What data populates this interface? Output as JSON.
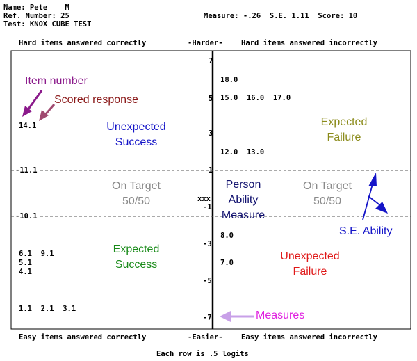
{
  "header": {
    "name": "Name: Pete    M",
    "ref": "Ref. Number: 25",
    "test": "Test: KNOX CUBE TEST",
    "stats": "Measure: -.26  S.E. 1.11  Score: 10"
  },
  "top_row": {
    "left": "Hard items answered correctly",
    "center": "-Harder-",
    "right": "Hard items answered incorrectly"
  },
  "bottom_row": {
    "left": "Easy items answered correctly",
    "center": "-Easier-",
    "right": "Easy items answered incorrectly"
  },
  "footer": "Each row is .5 logits",
  "axis_ticks": [
    "7",
    "5",
    "3",
    "1",
    "-1",
    "-3",
    "-5",
    "-7"
  ],
  "band_labels": {
    "upper": "-11.1",
    "lower": "-10.1"
  },
  "person_marker": "xxx",
  "items": {
    "right_1": "18.0",
    "right_2": "15.0  16.0  17.0",
    "right_3": "12.0  13.0",
    "right_4": "8.0",
    "right_5": "7.0",
    "left_1": "14.1",
    "left_2": "6.1  9.1",
    "left_3": "5.1",
    "left_4": "4.1",
    "left_5": "1.1  2.1  3.1"
  },
  "annotations": {
    "item_number": "Item number",
    "scored_response": "Scored response",
    "unexpected_success": "Unexpected\nSuccess",
    "expected_failure": "Expected\nFailure",
    "on_target_left": "On Target\n50/50",
    "on_target_right": "On Target\n50/50",
    "person_ability": "Person\nAbility\nMeasure",
    "se_ability": "S.E. Ability",
    "expected_success": "Expected\nSuccess",
    "unexpected_failure": "Unexpected\nFailure",
    "measures": "Measures"
  },
  "colors": {
    "item_number": "#8b1a8b",
    "scored_response": "#8b1a1a",
    "unexpected_success": "#1515c8",
    "expected_failure": "#8b8b1a",
    "on_target": "#8a8a8a",
    "person_ability": "#10106e",
    "se_ability": "#1515c8",
    "expected_success": "#1a8b1a",
    "unexpected_failure": "#e01818",
    "measures": "#e020e0",
    "measures_arrow": "#c8a0e8",
    "scored_arrow": "#a04a70"
  }
}
